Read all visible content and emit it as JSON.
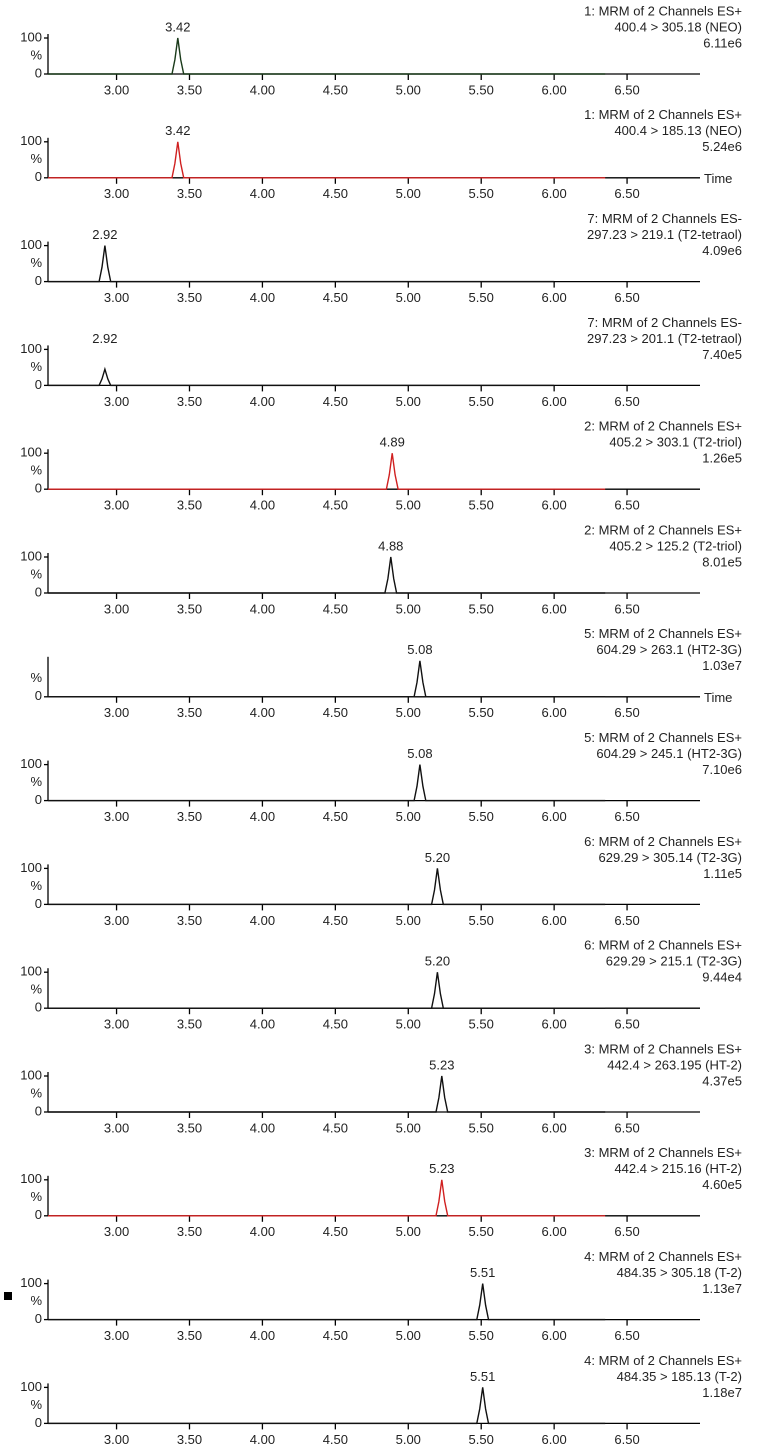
{
  "chart_data": [
    {
      "type": "line",
      "title_lines": [
        "1: MRM of 2 Channels ES+",
        "400.4 > 305.18 (NEO)",
        "6.11e6"
      ],
      "title_color": "#2e8b2e",
      "line_color": "#1a3a1a",
      "x": [
        2.53,
        3.38,
        3.4,
        3.42,
        3.44,
        3.46,
        6.35
      ],
      "values": [
        0,
        0,
        40,
        100,
        40,
        0,
        0
      ],
      "annotation": {
        "x": 3.42,
        "text": "3.42"
      },
      "ylabel": "%",
      "xlim": [
        2.53,
        7.0
      ],
      "ylim": [
        0,
        100
      ],
      "yticks": [
        0,
        100
      ],
      "xticks": [
        {
          "value": 3,
          "label": "3.00"
        },
        {
          "value": 3.5,
          "label": "3.50"
        },
        {
          "value": 4,
          "label": "4.00"
        },
        {
          "value": 4.5,
          "label": "4.50"
        },
        {
          "value": 5,
          "label": "5.00"
        },
        {
          "value": 5.5,
          "label": "5.50"
        },
        {
          "value": 6,
          "label": "6.00"
        },
        {
          "value": 6.5,
          "label": "6.50"
        }
      ]
    },
    {
      "type": "line",
      "title_lines": [
        "1: MRM of 2 Channels ES+",
        "400.4 > 185.13 (NEO)",
        "5.24e6"
      ],
      "title_color": "#d02020",
      "line_color": "#d02020",
      "x": [
        2.53,
        3.38,
        3.4,
        3.42,
        3.44,
        3.46,
        6.35
      ],
      "values": [
        0,
        0,
        40,
        100,
        40,
        0,
        0
      ],
      "annotation": {
        "x": 3.42,
        "text": "3.42"
      },
      "ylabel": "%",
      "xlabel": "Time",
      "xlim": [
        2.53,
        7.0
      ],
      "ylim": [
        0,
        100
      ],
      "yticks": [
        0,
        100
      ],
      "xticks": [
        {
          "value": 3,
          "label": "3.00"
        },
        {
          "value": 3.5,
          "label": "3.50"
        },
        {
          "value": 4,
          "label": "4.00"
        },
        {
          "value": 4.5,
          "label": "4.50"
        },
        {
          "value": 5,
          "label": "5.00"
        },
        {
          "value": 5.5,
          "label": "5.50"
        },
        {
          "value": 6,
          "label": "6.00"
        },
        {
          "value": 6.5,
          "label": "6.50"
        }
      ]
    },
    {
      "type": "line",
      "title_lines": [
        "7: MRM of 2 Channels ES-",
        "297.23 > 219.1 (T2-tetraol)",
        "4.09e6"
      ],
      "title_color": "#222222",
      "line_color": "#111111",
      "x": [
        2.53,
        2.88,
        2.9,
        2.92,
        2.94,
        2.96,
        6.0
      ],
      "values": [
        0,
        0,
        40,
        100,
        40,
        0,
        0
      ],
      "annotation": {
        "x": 2.92,
        "text": "2.92"
      },
      "ylabel": "%",
      "xlim": [
        2.53,
        7.0
      ],
      "ylim": [
        0,
        100
      ],
      "yticks": [
        0,
        100
      ],
      "xticks": [
        {
          "value": 3,
          "label": "3.00"
        },
        {
          "value": 3.5,
          "label": "3.50"
        },
        {
          "value": 4,
          "label": "4.00"
        },
        {
          "value": 4.5,
          "label": "4.50"
        },
        {
          "value": 5,
          "label": "5.00"
        },
        {
          "value": 5.5,
          "label": "5.50"
        },
        {
          "value": 6,
          "label": "6.00"
        },
        {
          "value": 6.5,
          "label": "6.50"
        }
      ]
    },
    {
      "type": "line",
      "title_lines": [
        "7: MRM of 2 Channels ES-",
        "297.23 > 201.1 (T2-tetraol)",
        "7.40e5"
      ],
      "title_color": "#7a2a8a",
      "line_color": "#111111",
      "x": [
        2.53,
        2.88,
        2.9,
        2.92,
        2.94,
        2.96,
        6.0
      ],
      "values": [
        0,
        0,
        18,
        45,
        18,
        0,
        0
      ],
      "annotation": {
        "x": 2.92,
        "text": "2.92"
      },
      "ylabel": "%",
      "xlim": [
        2.53,
        7.0
      ],
      "ylim": [
        0,
        100
      ],
      "yticks": [
        0,
        100
      ],
      "xticks": [
        {
          "value": 3,
          "label": "3.00"
        },
        {
          "value": 3.5,
          "label": "3.50"
        },
        {
          "value": 4,
          "label": "4.00"
        },
        {
          "value": 4.5,
          "label": "4.50"
        },
        {
          "value": 5,
          "label": "5.00"
        },
        {
          "value": 5.5,
          "label": "5.50"
        },
        {
          "value": 6,
          "label": "6.00"
        },
        {
          "value": 6.5,
          "label": "6.50"
        }
      ]
    },
    {
      "type": "line",
      "title_lines": [
        "2: MRM of 2 Channels ES+",
        "405.2 > 303.1 (T2-triol)",
        "1.26e5"
      ],
      "title_color": "#d02020",
      "line_color": "#d02020",
      "x": [
        2.53,
        4.85,
        4.87,
        4.89,
        4.91,
        4.93,
        6.35
      ],
      "values": [
        0,
        0,
        40,
        100,
        40,
        0,
        0
      ],
      "annotation": {
        "x": 4.89,
        "text": "4.89"
      },
      "ylabel": "%",
      "xlim": [
        2.53,
        7.0
      ],
      "ylim": [
        0,
        100
      ],
      "yticks": [
        0,
        100
      ],
      "xticks": [
        {
          "value": 3,
          "label": "3.00"
        },
        {
          "value": 3.5,
          "label": "3.50"
        },
        {
          "value": 4,
          "label": "4.00"
        },
        {
          "value": 4.5,
          "label": "4.50"
        },
        {
          "value": 5,
          "label": "5.00"
        },
        {
          "value": 5.5,
          "label": "5.50"
        },
        {
          "value": 6,
          "label": "6.00"
        },
        {
          "value": 6.5,
          "label": "6.50"
        }
      ]
    },
    {
      "type": "line",
      "title_lines": [
        "2: MRM of 2 Channels ES+",
        "405.2 > 125.2 (T2-triol)",
        "8.01e5"
      ],
      "title_color": "#6a2a1a",
      "line_color": "#111111",
      "x": [
        2.53,
        4.84,
        4.86,
        4.88,
        4.9,
        4.92,
        6.35
      ],
      "values": [
        0,
        0,
        40,
        100,
        40,
        0,
        0
      ],
      "annotation": {
        "x": 4.88,
        "text": "4.88"
      },
      "ylabel": "%",
      "xlim": [
        2.53,
        7.0
      ],
      "ylim": [
        0,
        100
      ],
      "yticks": [
        0,
        100
      ],
      "xticks": [
        {
          "value": 3,
          "label": "3.00"
        },
        {
          "value": 3.5,
          "label": "3.50"
        },
        {
          "value": 4,
          "label": "4.00"
        },
        {
          "value": 4.5,
          "label": "4.50"
        },
        {
          "value": 5,
          "label": "5.00"
        },
        {
          "value": 5.5,
          "label": "5.50"
        },
        {
          "value": 6,
          "label": "6.00"
        },
        {
          "value": 6.5,
          "label": "6.50"
        }
      ]
    },
    {
      "type": "line",
      "title_lines": [
        "5: MRM of 2 Channels ES+",
        "604.29 > 263.1 (HT2-3G)",
        "1.03e7"
      ],
      "title_color": "#7a2a8a",
      "line_color": "#111111",
      "x": [
        2.53,
        5.04,
        5.06,
        5.08,
        5.1,
        5.12,
        6.35
      ],
      "values": [
        0,
        0,
        40,
        100,
        40,
        0,
        0
      ],
      "annotation": {
        "x": 5.08,
        "text": "5.08"
      },
      "ylabel": "%",
      "xlabel": "Time",
      "xlim": [
        2.53,
        7.0
      ],
      "ylim": [
        0,
        100
      ],
      "yticks": [
        0
      ],
      "xticks": [
        {
          "value": 3,
          "label": "3.00"
        },
        {
          "value": 3.5,
          "label": "3.50"
        },
        {
          "value": 4,
          "label": "4.00"
        },
        {
          "value": 4.5,
          "label": "4.50"
        },
        {
          "value": 5,
          "label": "5.00"
        },
        {
          "value": 5.5,
          "label": "5.50"
        },
        {
          "value": 6,
          "label": "6.00"
        },
        {
          "value": 6.5,
          "label": "6.50"
        }
      ]
    },
    {
      "type": "line",
      "title_lines": [
        "5: MRM of 2 Channels ES+",
        "604.29 > 245.1 (HT2-3G)",
        "7.10e6"
      ],
      "title_color": "#2e8b2e",
      "line_color": "#111111",
      "x": [
        2.53,
        5.04,
        5.06,
        5.08,
        5.1,
        5.12,
        6.35
      ],
      "values": [
        0,
        0,
        40,
        100,
        40,
        0,
        0
      ],
      "annotation": {
        "x": 5.08,
        "text": "5.08"
      },
      "ylabel": "%",
      "xlim": [
        2.53,
        7.0
      ],
      "ylim": [
        0,
        100
      ],
      "yticks": [
        0,
        100
      ],
      "xticks": [
        {
          "value": 3,
          "label": "3.00"
        },
        {
          "value": 3.5,
          "label": "3.50"
        },
        {
          "value": 4,
          "label": "4.00"
        },
        {
          "value": 4.5,
          "label": "4.50"
        },
        {
          "value": 5,
          "label": "5.00"
        },
        {
          "value": 5.5,
          "label": "5.50"
        },
        {
          "value": 6,
          "label": "6.00"
        },
        {
          "value": 6.5,
          "label": "6.50"
        }
      ]
    },
    {
      "type": "line",
      "title_lines": [
        "6: MRM of 2 Channels ES+",
        "629.29 > 305.14 (T2-3G)",
        "1.11e5"
      ],
      "title_color": "#6a2a1a",
      "line_color": "#111111",
      "x": [
        2.53,
        5.16,
        5.18,
        5.2,
        5.22,
        5.24,
        6.35
      ],
      "values": [
        0,
        0,
        40,
        100,
        40,
        0,
        0
      ],
      "annotation": {
        "x": 5.2,
        "text": "5.20"
      },
      "ylabel": "%",
      "xlim": [
        2.53,
        7.0
      ],
      "ylim": [
        0,
        100
      ],
      "yticks": [
        0,
        100
      ],
      "xticks": [
        {
          "value": 3,
          "label": "3.00"
        },
        {
          "value": 3.5,
          "label": "3.50"
        },
        {
          "value": 4,
          "label": "4.00"
        },
        {
          "value": 4.5,
          "label": "4.50"
        },
        {
          "value": 5,
          "label": "5.00"
        },
        {
          "value": 5.5,
          "label": "5.50"
        },
        {
          "value": 6,
          "label": "6.00"
        },
        {
          "value": 6.5,
          "label": "6.50"
        }
      ]
    },
    {
      "type": "line",
      "title_lines": [
        "6: MRM of 2 Channels ES+",
        "629.29 > 215.1 (T2-3G)",
        "9.44e4"
      ],
      "title_color": "#222222",
      "line_color": "#111111",
      "x": [
        2.53,
        5.16,
        5.18,
        5.2,
        5.22,
        5.24,
        6.35
      ],
      "values": [
        0,
        0,
        40,
        100,
        40,
        0,
        0
      ],
      "annotation": {
        "x": 5.2,
        "text": "5.20"
      },
      "ylabel": "%",
      "xlim": [
        2.53,
        7.0
      ],
      "ylim": [
        0,
        100
      ],
      "yticks": [
        0,
        100
      ],
      "xticks": [
        {
          "value": 3,
          "label": "3.00"
        },
        {
          "value": 3.5,
          "label": "3.50"
        },
        {
          "value": 4,
          "label": "4.00"
        },
        {
          "value": 4.5,
          "label": "4.50"
        },
        {
          "value": 5,
          "label": "5.00"
        },
        {
          "value": 5.5,
          "label": "5.50"
        },
        {
          "value": 6,
          "label": "6.00"
        },
        {
          "value": 6.5,
          "label": "6.50"
        }
      ]
    },
    {
      "type": "line",
      "title_lines": [
        "3: MRM of 2 Channels ES+",
        "442.4 > 263.195 (HT-2)",
        "4.37e5"
      ],
      "title_color": "#2e8b2e",
      "line_color": "#111111",
      "x": [
        2.53,
        5.19,
        5.21,
        5.23,
        5.25,
        5.27,
        6.35
      ],
      "values": [
        0,
        0,
        40,
        100,
        40,
        0,
        0
      ],
      "annotation": {
        "x": 5.23,
        "text": "5.23"
      },
      "ylabel": "%",
      "xlim": [
        2.53,
        7.0
      ],
      "ylim": [
        0,
        100
      ],
      "yticks": [
        0,
        100
      ],
      "xticks": [
        {
          "value": 3,
          "label": "3.00"
        },
        {
          "value": 3.5,
          "label": "3.50"
        },
        {
          "value": 4,
          "label": "4.00"
        },
        {
          "value": 4.5,
          "label": "4.50"
        },
        {
          "value": 5,
          "label": "5.00"
        },
        {
          "value": 5.5,
          "label": "5.50"
        },
        {
          "value": 6,
          "label": "6.00"
        },
        {
          "value": 6.5,
          "label": "6.50"
        }
      ]
    },
    {
      "type": "line",
      "title_lines": [
        "3: MRM of 2 Channels ES+",
        "442.4 > 215.16 (HT-2)",
        "4.60e5"
      ],
      "title_color": "#d02020",
      "line_color": "#d02020",
      "x": [
        2.53,
        5.19,
        5.21,
        5.23,
        5.25,
        5.27,
        6.35
      ],
      "values": [
        0,
        0,
        40,
        100,
        40,
        0,
        0
      ],
      "annotation": {
        "x": 5.23,
        "text": "5.23"
      },
      "ylabel": "%",
      "xlim": [
        2.53,
        7.0
      ],
      "ylim": [
        0,
        100
      ],
      "yticks": [
        0,
        100
      ],
      "xticks": [
        {
          "value": 3,
          "label": "3.00"
        },
        {
          "value": 3.5,
          "label": "3.50"
        },
        {
          "value": 4,
          "label": "4.00"
        },
        {
          "value": 4.5,
          "label": "4.50"
        },
        {
          "value": 5,
          "label": "5.00"
        },
        {
          "value": 5.5,
          "label": "5.50"
        },
        {
          "value": 6,
          "label": "6.00"
        },
        {
          "value": 6.5,
          "label": "6.50"
        }
      ]
    },
    {
      "type": "line",
      "title_lines": [
        "4: MRM of 2 Channels ES+",
        "484.35 > 305.18 (T-2)",
        "1.13e7"
      ],
      "title_color": "#222222",
      "line_color": "#111111",
      "x": [
        2.53,
        5.47,
        5.49,
        5.51,
        5.53,
        5.55,
        6.35
      ],
      "values": [
        0,
        0,
        40,
        100,
        40,
        0,
        0
      ],
      "annotation": {
        "x": 5.51,
        "text": "5.51"
      },
      "ylabel": "%",
      "xlim": [
        2.53,
        7.0
      ],
      "ylim": [
        0,
        100
      ],
      "yticks": [
        0,
        100
      ],
      "xticks": [
        {
          "value": 3,
          "label": "3.00"
        },
        {
          "value": 3.5,
          "label": "3.50"
        },
        {
          "value": 4,
          "label": "4.00"
        },
        {
          "value": 4.5,
          "label": "4.50"
        },
        {
          "value": 5,
          "label": "5.00"
        },
        {
          "value": 5.5,
          "label": "5.50"
        },
        {
          "value": 6,
          "label": "6.00"
        },
        {
          "value": 6.5,
          "label": "6.50"
        }
      ]
    },
    {
      "type": "line",
      "title_lines": [
        "4: MRM of 2 Channels ES+",
        "484.35 > 185.13 (T-2)",
        "1.18e7"
      ],
      "title_color": "#7a2a8a",
      "line_color": "#111111",
      "x": [
        2.53,
        5.47,
        5.49,
        5.51,
        5.53,
        5.55,
        6.35
      ],
      "values": [
        0,
        0,
        40,
        100,
        40,
        0,
        0
      ],
      "annotation": {
        "x": 5.51,
        "text": "5.51"
      },
      "ylabel": "%",
      "xlim": [
        2.53,
        7.0
      ],
      "ylim": [
        0,
        100
      ],
      "yticks": [
        0,
        100
      ],
      "xticks": [
        {
          "value": 3,
          "label": "3.00"
        },
        {
          "value": 3.5,
          "label": "3.50"
        },
        {
          "value": 4,
          "label": "4.00"
        },
        {
          "value": 4.5,
          "label": "4.50"
        },
        {
          "value": 5,
          "label": "5.00"
        },
        {
          "value": 5.5,
          "label": "5.50"
        },
        {
          "value": 6,
          "label": "6.00"
        },
        {
          "value": 6.5,
          "label": "6.50"
        }
      ]
    }
  ]
}
